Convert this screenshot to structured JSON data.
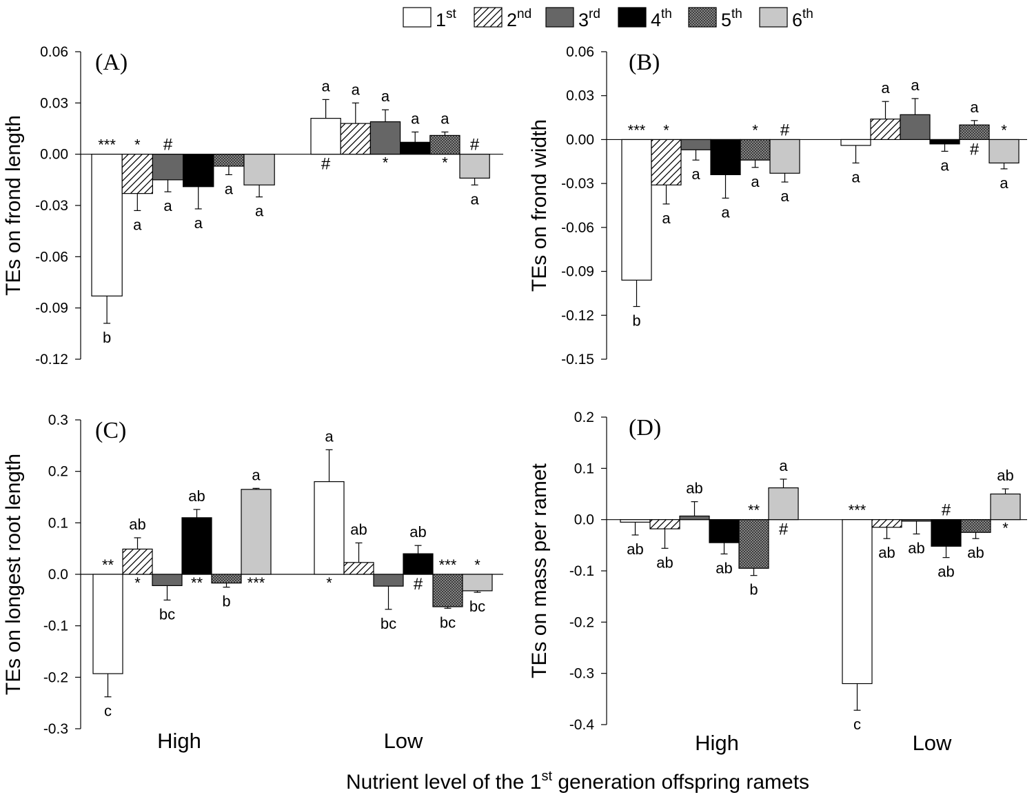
{
  "legend": {
    "items": [
      {
        "base": "1",
        "sup": "st",
        "fill": "white"
      },
      {
        "base": "2",
        "sup": "nd",
        "fill": "hatch"
      },
      {
        "base": "3",
        "sup": "rd",
        "fill": "#666666"
      },
      {
        "base": "4",
        "sup": "th",
        "fill": "#000000"
      },
      {
        "base": "5",
        "sup": "th",
        "fill": "crosshatch"
      },
      {
        "base": "6",
        "sup": "th",
        "fill": "#c8c8c8"
      }
    ],
    "placement": "top-center"
  },
  "xlabel": {
    "before": "Nutrient level of the 1",
    "sup": "st",
    "after": " generation offspring ramets"
  },
  "chart_data": [
    {
      "type": "bar",
      "panel": "(A)",
      "ylabel": "TEs on frond length",
      "categories": [
        "High",
        "Low"
      ],
      "show_category_labels": false,
      "ylim": [
        -0.12,
        0.06
      ],
      "yticks": [
        -0.12,
        -0.09,
        -0.06,
        -0.03,
        0.0,
        0.03,
        0.06
      ],
      "ytick_labels": [
        "-0.12",
        "-0.09",
        "-0.06",
        "-0.03",
        "0.00",
        "0.03",
        "0.06"
      ],
      "series_labels": [
        "1st",
        "2nd",
        "3rd",
        "4th",
        "5th",
        "6th"
      ],
      "values": [
        [
          -0.083,
          -0.023,
          -0.015,
          -0.019,
          -0.007,
          -0.018
        ],
        [
          0.021,
          0.018,
          0.019,
          0.007,
          0.011,
          -0.014
        ]
      ],
      "errors": [
        [
          0.016,
          0.01,
          0.007,
          0.013,
          0.005,
          0.007
        ],
        [
          0.011,
          0.012,
          0.007,
          0.006,
          0.002,
          0.004
        ]
      ],
      "letters": [
        [
          "b",
          "a",
          "a",
          "a",
          "a",
          "a"
        ],
        [
          "a",
          "a",
          "a",
          "a",
          "a",
          "a"
        ]
      ],
      "marks": [
        [
          "***",
          "*",
          "#",
          "",
          "",
          ""
        ],
        [
          "#",
          "",
          "*",
          "",
          "*",
          "#"
        ]
      ]
    },
    {
      "type": "bar",
      "panel": "(B)",
      "ylabel": "TEs on frond width",
      "categories": [
        "High",
        "Low"
      ],
      "show_category_labels": false,
      "ylim": [
        -0.15,
        0.06
      ],
      "yticks": [
        -0.15,
        -0.12,
        -0.09,
        -0.06,
        -0.03,
        0.0,
        0.03,
        0.06
      ],
      "ytick_labels": [
        "-0.15",
        "-0.12",
        "-0.09",
        "-0.06",
        "-0.03",
        "0.00",
        "0.03",
        "0.06"
      ],
      "series_labels": [
        "1st",
        "2nd",
        "3rd",
        "4th",
        "5th",
        "6th"
      ],
      "values": [
        [
          -0.096,
          -0.031,
          -0.007,
          -0.024,
          -0.014,
          -0.023
        ],
        [
          -0.004,
          0.014,
          0.017,
          -0.003,
          0.01,
          -0.016
        ]
      ],
      "errors": [
        [
          0.018,
          0.013,
          0.007,
          0.016,
          0.005,
          0.006
        ],
        [
          0.012,
          0.012,
          0.011,
          0.005,
          0.003,
          0.004
        ]
      ],
      "letters": [
        [
          "b",
          "a",
          "a",
          "a",
          "a",
          "a"
        ],
        [
          "a",
          "a",
          "a",
          "a",
          "a",
          "a"
        ]
      ],
      "marks": [
        [
          "***",
          "*",
          "",
          "",
          "*",
          "#"
        ],
        [
          "",
          "",
          "",
          "",
          "#",
          "*"
        ]
      ]
    },
    {
      "type": "bar",
      "panel": "(C)",
      "ylabel": "TEs on longest root length",
      "categories": [
        "High",
        "Low"
      ],
      "show_category_labels": true,
      "ylim": [
        -0.3,
        0.3
      ],
      "yticks": [
        -0.3,
        -0.2,
        -0.1,
        0.0,
        0.1,
        0.2,
        0.3
      ],
      "ytick_labels": [
        "-0.3",
        "-0.2",
        "-0.1",
        "0.0",
        "0.1",
        "0.2",
        "0.3"
      ],
      "series_labels": [
        "1st",
        "2nd",
        "3rd",
        "4th",
        "5th",
        "6th"
      ],
      "values": [
        [
          -0.193,
          0.049,
          -0.022,
          0.11,
          -0.017,
          0.165
        ],
        [
          0.18,
          0.023,
          -0.023,
          0.04,
          -0.063,
          -0.032
        ]
      ],
      "errors": [
        [
          0.045,
          0.022,
          0.028,
          0.016,
          0.008,
          0.002
        ],
        [
          0.062,
          0.038,
          0.045,
          0.016,
          0.003,
          0.003
        ]
      ],
      "letters": [
        [
          "c",
          "ab",
          "bc",
          "ab",
          "b",
          "a"
        ],
        [
          "a",
          "ab",
          "bc",
          "ab",
          "bc",
          "bc"
        ]
      ],
      "marks": [
        [
          "**",
          "*",
          "",
          "**",
          "",
          "***"
        ],
        [
          "*",
          "",
          "",
          "#",
          "***",
          "*"
        ]
      ]
    },
    {
      "type": "bar",
      "panel": "(D)",
      "ylabel": "TEs on mass per ramet",
      "categories": [
        "High",
        "Low"
      ],
      "show_category_labels": true,
      "ylim": [
        -0.4,
        0.2
      ],
      "yticks": [
        -0.4,
        -0.3,
        -0.2,
        -0.1,
        0.0,
        0.1,
        0.2
      ],
      "ytick_labels": [
        "-0.4",
        "-0.3",
        "-0.2",
        "-0.1",
        "0.0",
        "0.1",
        "0.2"
      ],
      "series_labels": [
        "1st",
        "2nd",
        "3rd",
        "4th",
        "5th",
        "6th"
      ],
      "values": [
        [
          -0.005,
          -0.018,
          0.007,
          -0.045,
          -0.095,
          0.062
        ],
        [
          -0.32,
          -0.015,
          -0.003,
          -0.052,
          -0.025,
          0.05
        ]
      ],
      "errors": [
        [
          0.025,
          0.038,
          0.028,
          0.022,
          0.014,
          0.017
        ],
        [
          0.052,
          0.022,
          0.025,
          0.022,
          0.012,
          0.01
        ]
      ],
      "letters": [
        [
          "ab",
          "ab",
          "ab",
          "ab",
          "b",
          "a"
        ],
        [
          "c",
          "ab",
          "ab",
          "ab",
          "ab",
          "ab"
        ]
      ],
      "marks": [
        [
          "",
          "",
          "",
          "",
          "**",
          "#"
        ],
        [
          "***",
          "",
          "",
          "#",
          "",
          "*"
        ]
      ]
    }
  ]
}
